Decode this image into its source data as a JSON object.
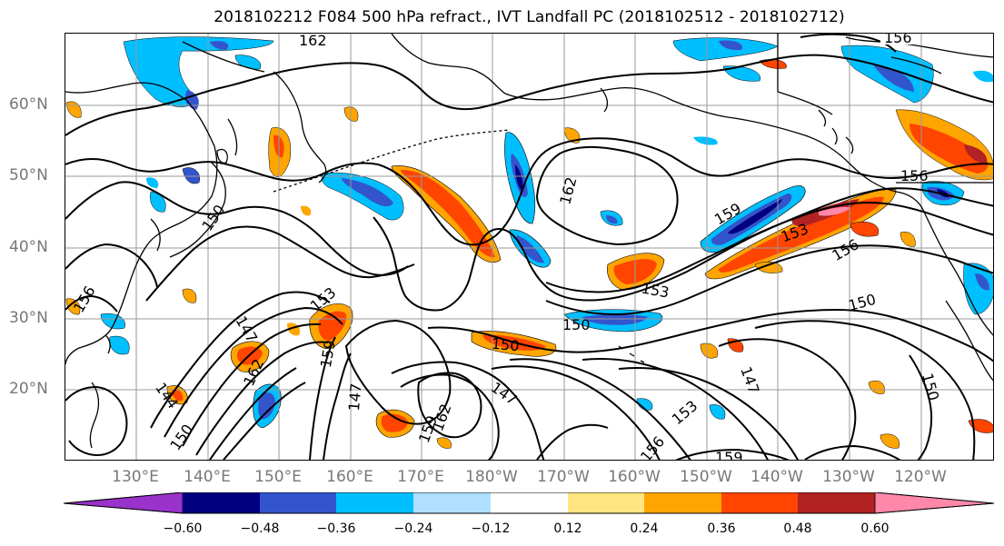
{
  "title": "2018102212 F084 500 hPa refract., IVT Landfall PC (2018102512 - 2018102712)",
  "lat_labels": [
    "60°N",
    "50°N",
    "40°N",
    "30°N",
    "20°N"
  ],
  "lon_labels": [
    "130°E",
    "140°E",
    "150°E",
    "160°E",
    "170°E",
    "180°W",
    "170°W",
    "160°W",
    "150°W",
    "140°W",
    "130°W",
    "120°W"
  ],
  "colorbar": {
    "ticks": [
      "−0.60",
      "−0.48",
      "−0.36",
      "−0.24",
      "−0.12",
      "0.12",
      "0.24",
      "0.36",
      "0.48",
      "0.60"
    ],
    "colors": [
      "#9933cc",
      "#000080",
      "#3355cc",
      "#00bfff",
      "#b0e0ff",
      "#ffffff",
      "#ffe680",
      "#ffa500",
      "#ff4500",
      "#b22222",
      "#ff88aa"
    ]
  },
  "contour_labels": [
    "162",
    "156",
    "156",
    "150",
    "159",
    "153",
    "156",
    "162",
    "153",
    "150",
    "150",
    "150",
    "147",
    "159",
    "153",
    "162",
    "147",
    "144",
    "150",
    "147",
    "159",
    "162",
    "153",
    "156",
    "147",
    "150",
    "159",
    "156"
  ],
  "colors": {
    "land_outline": "#000000",
    "grid": "#9a9a9a",
    "axis_label": "#777777"
  }
}
